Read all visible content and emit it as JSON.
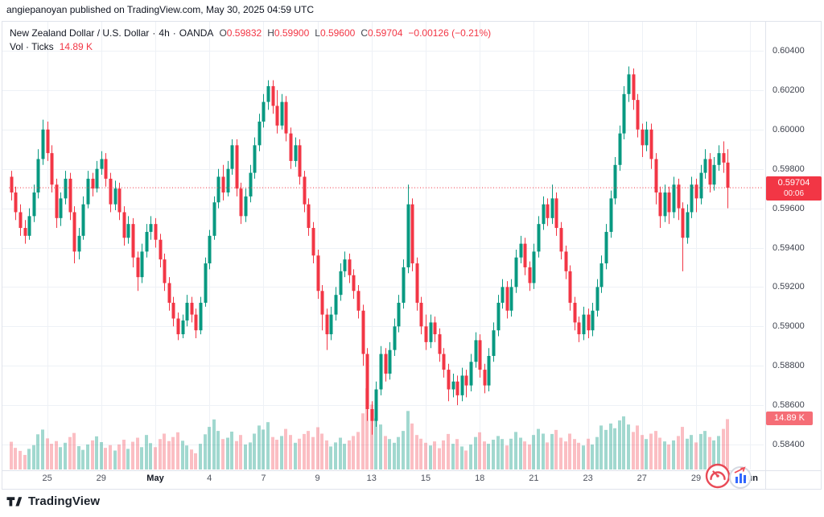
{
  "header": {
    "attribution": "angiepanoyan published on TradingView.com, May 30, 2025 04:59 UTC"
  },
  "legend": {
    "symbol": "New Zealand Dollar / U.S. Dollar",
    "sep": "·",
    "interval": "4h",
    "exchange": "OANDA",
    "ohlc": [
      {
        "k": "O",
        "v": "0.59832"
      },
      {
        "k": "H",
        "v": "0.59900"
      },
      {
        "k": "L",
        "v": "0.59600"
      },
      {
        "k": "C",
        "v": "0.59704"
      }
    ],
    "change": "−0.00126 (−0.21%)",
    "vol_label": "Vol · Ticks",
    "vol_value": "14.89 K"
  },
  "price_axis": {
    "ticks": [
      "0.60400",
      "0.60200",
      "0.60000",
      "0.59800",
      "0.59600",
      "0.59400",
      "0.59200",
      "0.59000",
      "0.58800",
      "0.58600",
      "0.58400"
    ],
    "current_price_label": "0.59704",
    "countdown": "00:06",
    "volume_label": "14.89 K"
  },
  "footer": {
    "brand": "TradingView"
  },
  "colors": {
    "up": "#089981",
    "down": "#f23645",
    "vol_up": "rgba(8,153,129,0.38)",
    "vol_down": "rgba(242,54,69,0.32)",
    "grid": "#eef1f6",
    "separator": "#e0e3eb",
    "price_line": "#f23645",
    "badge": "#f23645",
    "vol_badge": "#f56d76",
    "blue": "#2962ff"
  },
  "chart_data": {
    "type": "candlestick",
    "title": "New Zealand Dollar / U.S. Dollar · 4h · OANDA",
    "interval": "4h",
    "exchange": "OANDA",
    "ylabel": "price",
    "ylim": [
      0.5834,
      0.6046
    ],
    "grid": true,
    "current_price": 0.59704,
    "countdown": "00:06",
    "last_volume_k": 14.89,
    "last_bar": {
      "open": 0.59832,
      "high": 0.599,
      "low": 0.596,
      "close": 0.59704,
      "change": -0.00126,
      "change_pct": -0.21,
      "volume": "14.89 K"
    },
    "price_ticks": [
      0.604,
      0.602,
      0.6,
      0.598,
      0.596,
      0.594,
      0.592,
      0.59,
      0.588,
      0.586,
      0.584
    ],
    "time_labels": [
      {
        "text": "25",
        "index": 8,
        "month": false
      },
      {
        "text": "29",
        "index": 20,
        "month": false
      },
      {
        "text": "May",
        "index": 32,
        "month": true
      },
      {
        "text": "4",
        "index": 44,
        "month": false
      },
      {
        "text": "7",
        "index": 56,
        "month": false
      },
      {
        "text": "9",
        "index": 68,
        "month": false
      },
      {
        "text": "13",
        "index": 80,
        "month": false
      },
      {
        "text": "15",
        "index": 92,
        "month": false
      },
      {
        "text": "18",
        "index": 104,
        "month": false
      },
      {
        "text": "21",
        "index": 116,
        "month": false
      },
      {
        "text": "23",
        "index": 128,
        "month": false
      },
      {
        "text": "27",
        "index": 140,
        "month": false
      },
      {
        "text": "29",
        "index": 152,
        "month": false
      },
      {
        "text": "Jun",
        "index": 164,
        "month": true
      }
    ],
    "candles": [
      [
        0.5976,
        0.5979,
        0.5964,
        0.5968
      ],
      [
        0.5968,
        0.5971,
        0.5954,
        0.5958
      ],
      [
        0.5958,
        0.5962,
        0.5946,
        0.595
      ],
      [
        0.595,
        0.5954,
        0.5942,
        0.5946
      ],
      [
        0.5946,
        0.596,
        0.5944,
        0.5956
      ],
      [
        0.5956,
        0.5972,
        0.5953,
        0.5968
      ],
      [
        0.5968,
        0.599,
        0.5965,
        0.5985
      ],
      [
        0.5985,
        0.6005,
        0.5982,
        0.6
      ],
      [
        0.6,
        0.6004,
        0.5984,
        0.5988
      ],
      [
        0.5988,
        0.5992,
        0.5968,
        0.5972
      ],
      [
        0.5972,
        0.5975,
        0.595,
        0.5955
      ],
      [
        0.5955,
        0.5968,
        0.5951,
        0.5965
      ],
      [
        0.5965,
        0.5979,
        0.5962,
        0.5975
      ],
      [
        0.5975,
        0.5978,
        0.5954,
        0.5958
      ],
      [
        0.5958,
        0.5961,
        0.5932,
        0.5938
      ],
      [
        0.5938,
        0.595,
        0.5934,
        0.5946
      ],
      [
        0.5946,
        0.5966,
        0.5944,
        0.5962
      ],
      [
        0.5962,
        0.5979,
        0.596,
        0.5975
      ],
      [
        0.5975,
        0.5978,
        0.5966,
        0.597
      ],
      [
        0.597,
        0.5984,
        0.5968,
        0.598
      ],
      [
        0.598,
        0.5989,
        0.5977,
        0.5985
      ],
      [
        0.5985,
        0.5988,
        0.5971,
        0.5975
      ],
      [
        0.5975,
        0.5978,
        0.5958,
        0.5962
      ],
      [
        0.5962,
        0.5974,
        0.5959,
        0.597
      ],
      [
        0.597,
        0.5973,
        0.5954,
        0.5958
      ],
      [
        0.5958,
        0.5961,
        0.5941,
        0.5945
      ],
      [
        0.5945,
        0.5956,
        0.5942,
        0.5952
      ],
      [
        0.5952,
        0.5955,
        0.593,
        0.5935
      ],
      [
        0.5935,
        0.5938,
        0.5918,
        0.5925
      ],
      [
        0.5925,
        0.5942,
        0.5922,
        0.5938
      ],
      [
        0.5938,
        0.5952,
        0.5935,
        0.5948
      ],
      [
        0.5948,
        0.5956,
        0.5944,
        0.5952
      ],
      [
        0.5952,
        0.5955,
        0.594,
        0.5944
      ],
      [
        0.5944,
        0.5947,
        0.593,
        0.5934
      ],
      [
        0.5934,
        0.5937,
        0.5918,
        0.5922
      ],
      [
        0.5922,
        0.5925,
        0.5908,
        0.5912
      ],
      [
        0.5912,
        0.5915,
        0.59,
        0.5904
      ],
      [
        0.5904,
        0.5907,
        0.5893,
        0.5896
      ],
      [
        0.5896,
        0.5906,
        0.5894,
        0.5903
      ],
      [
        0.5903,
        0.5916,
        0.59,
        0.5912
      ],
      [
        0.5912,
        0.5915,
        0.5902,
        0.5906
      ],
      [
        0.5906,
        0.5909,
        0.5894,
        0.5898
      ],
      [
        0.5898,
        0.5915,
        0.5896,
        0.5912
      ],
      [
        0.5912,
        0.5935,
        0.591,
        0.5932
      ],
      [
        0.5932,
        0.5949,
        0.5929,
        0.5946
      ],
      [
        0.5946,
        0.5966,
        0.5944,
        0.5963
      ],
      [
        0.5963,
        0.598,
        0.596,
        0.5976
      ],
      [
        0.5976,
        0.5982,
        0.5964,
        0.5968
      ],
      [
        0.5968,
        0.5984,
        0.5966,
        0.598
      ],
      [
        0.598,
        0.5995,
        0.5977,
        0.5992
      ],
      [
        0.5992,
        0.5995,
        0.5966,
        0.597
      ],
      [
        0.597,
        0.5973,
        0.5952,
        0.5956
      ],
      [
        0.5956,
        0.597,
        0.5953,
        0.5966
      ],
      [
        0.5966,
        0.5982,
        0.5963,
        0.5978
      ],
      [
        0.5978,
        0.5996,
        0.5975,
        0.5992
      ],
      [
        0.5992,
        0.6008,
        0.5989,
        0.6004
      ],
      [
        0.6004,
        0.6018,
        0.6001,
        0.6014
      ],
      [
        0.6014,
        0.6025,
        0.601,
        0.6022
      ],
      [
        0.6022,
        0.6025,
        0.6008,
        0.6012
      ],
      [
        0.6012,
        0.602,
        0.5998,
        0.6002
      ],
      [
        0.6002,
        0.6018,
        0.6,
        0.6014
      ],
      [
        0.6014,
        0.6017,
        0.5994,
        0.5998
      ],
      [
        0.5998,
        0.6001,
        0.598,
        0.5984
      ],
      [
        0.5984,
        0.5996,
        0.5981,
        0.5992
      ],
      [
        0.5992,
        0.5995,
        0.5972,
        0.5976
      ],
      [
        0.5976,
        0.5979,
        0.5958,
        0.5962
      ],
      [
        0.5962,
        0.5965,
        0.5946,
        0.595
      ],
      [
        0.595,
        0.5953,
        0.5932,
        0.5936
      ],
      [
        0.5936,
        0.5939,
        0.5914,
        0.5918
      ],
      [
        0.5918,
        0.5921,
        0.5898,
        0.5906
      ],
      [
        0.5906,
        0.5909,
        0.5888,
        0.5896
      ],
      [
        0.5896,
        0.591,
        0.5893,
        0.5906
      ],
      [
        0.5906,
        0.592,
        0.5903,
        0.5916
      ],
      [
        0.5916,
        0.5932,
        0.5913,
        0.5928
      ],
      [
        0.5928,
        0.5938,
        0.5925,
        0.5934
      ],
      [
        0.5934,
        0.5937,
        0.5922,
        0.5926
      ],
      [
        0.5926,
        0.5929,
        0.5914,
        0.5918
      ],
      [
        0.5918,
        0.5921,
        0.5904,
        0.5908
      ],
      [
        0.5908,
        0.5911,
        0.588,
        0.5886
      ],
      [
        0.5886,
        0.5889,
        0.5852,
        0.5858
      ],
      [
        0.5858,
        0.5862,
        0.5845,
        0.5852
      ],
      [
        0.5852,
        0.5872,
        0.5849,
        0.5868
      ],
      [
        0.5868,
        0.589,
        0.5865,
        0.5886
      ],
      [
        0.5886,
        0.5889,
        0.5872,
        0.5876
      ],
      [
        0.5876,
        0.5892,
        0.5873,
        0.5888
      ],
      [
        0.5888,
        0.5904,
        0.5885,
        0.59
      ],
      [
        0.59,
        0.5916,
        0.5897,
        0.5912
      ],
      [
        0.5912,
        0.5934,
        0.5909,
        0.593
      ],
      [
        0.593,
        0.5972,
        0.5927,
        0.5962
      ],
      [
        0.5962,
        0.5965,
        0.5928,
        0.5932
      ],
      [
        0.5932,
        0.5935,
        0.5908,
        0.5912
      ],
      [
        0.5912,
        0.5915,
        0.5896,
        0.59
      ],
      [
        0.59,
        0.5906,
        0.5888,
        0.5892
      ],
      [
        0.5892,
        0.5906,
        0.5889,
        0.5902
      ],
      [
        0.5902,
        0.5905,
        0.5892,
        0.5896
      ],
      [
        0.5896,
        0.5899,
        0.5882,
        0.5886
      ],
      [
        0.5886,
        0.5889,
        0.5874,
        0.5878
      ],
      [
        0.5878,
        0.5881,
        0.5862,
        0.5868
      ],
      [
        0.5868,
        0.5876,
        0.5864,
        0.5872
      ],
      [
        0.5872,
        0.5875,
        0.586,
        0.5865
      ],
      [
        0.5865,
        0.5879,
        0.5862,
        0.5875
      ],
      [
        0.5875,
        0.5878,
        0.5864,
        0.587
      ],
      [
        0.587,
        0.5886,
        0.5867,
        0.5882
      ],
      [
        0.5882,
        0.5897,
        0.5879,
        0.5893
      ],
      [
        0.5893,
        0.5896,
        0.5874,
        0.5878
      ],
      [
        0.5878,
        0.5881,
        0.5866,
        0.587
      ],
      [
        0.587,
        0.5889,
        0.5867,
        0.5885
      ],
      [
        0.5885,
        0.5902,
        0.5882,
        0.5898
      ],
      [
        0.5898,
        0.5916,
        0.5895,
        0.5912
      ],
      [
        0.5912,
        0.5924,
        0.5909,
        0.592
      ],
      [
        0.592,
        0.5923,
        0.5904,
        0.5908
      ],
      [
        0.5908,
        0.5924,
        0.5905,
        0.592
      ],
      [
        0.592,
        0.5939,
        0.5917,
        0.5935
      ],
      [
        0.5935,
        0.5946,
        0.5932,
        0.5942
      ],
      [
        0.5942,
        0.5945,
        0.5926,
        0.593
      ],
      [
        0.593,
        0.5933,
        0.5918,
        0.5922
      ],
      [
        0.5922,
        0.5942,
        0.5919,
        0.5938
      ],
      [
        0.5938,
        0.5956,
        0.5935,
        0.5952
      ],
      [
        0.5952,
        0.5966,
        0.5949,
        0.5962
      ],
      [
        0.5962,
        0.5965,
        0.5951,
        0.5955
      ],
      [
        0.5955,
        0.5972,
        0.5952,
        0.5965
      ],
      [
        0.5965,
        0.5968,
        0.5946,
        0.595
      ],
      [
        0.595,
        0.5953,
        0.5934,
        0.5938
      ],
      [
        0.5938,
        0.5941,
        0.5924,
        0.5928
      ],
      [
        0.5928,
        0.5931,
        0.5908,
        0.5912
      ],
      [
        0.5912,
        0.5915,
        0.5898,
        0.5902
      ],
      [
        0.5902,
        0.5905,
        0.5892,
        0.5896
      ],
      [
        0.5896,
        0.591,
        0.5893,
        0.5906
      ],
      [
        0.5906,
        0.5909,
        0.5894,
        0.5898
      ],
      [
        0.5898,
        0.5912,
        0.5895,
        0.5908
      ],
      [
        0.5908,
        0.5924,
        0.5905,
        0.592
      ],
      [
        0.592,
        0.5936,
        0.5917,
        0.5932
      ],
      [
        0.5932,
        0.5952,
        0.5929,
        0.5948
      ],
      [
        0.5948,
        0.5969,
        0.5945,
        0.5965
      ],
      [
        0.5965,
        0.5986,
        0.5962,
        0.5982
      ],
      [
        0.5982,
        0.6002,
        0.5979,
        0.5998
      ],
      [
        0.5998,
        0.6022,
        0.5995,
        0.6018
      ],
      [
        0.6018,
        0.6032,
        0.6014,
        0.6028
      ],
      [
        0.6028,
        0.6031,
        0.601,
        0.6015
      ],
      [
        0.6015,
        0.6018,
        0.5996,
        0.6
      ],
      [
        0.6,
        0.6003,
        0.5986,
        0.5992
      ],
      [
        0.5992,
        0.6004,
        0.5989,
        0.6
      ],
      [
        0.6,
        0.6003,
        0.598,
        0.5985
      ],
      [
        0.5985,
        0.5988,
        0.5962,
        0.5968
      ],
      [
        0.5968,
        0.5971,
        0.595,
        0.5956
      ],
      [
        0.5956,
        0.5972,
        0.5953,
        0.5968
      ],
      [
        0.5968,
        0.5971,
        0.5952,
        0.5958
      ],
      [
        0.5958,
        0.5976,
        0.5955,
        0.5972
      ],
      [
        0.5972,
        0.5975,
        0.5954,
        0.596
      ],
      [
        0.596,
        0.5963,
        0.5928,
        0.5945
      ],
      [
        0.5945,
        0.5962,
        0.5942,
        0.5958
      ],
      [
        0.5958,
        0.5976,
        0.5955,
        0.5972
      ],
      [
        0.5972,
        0.5975,
        0.5958,
        0.5965
      ],
      [
        0.5965,
        0.5982,
        0.5962,
        0.5978
      ],
      [
        0.5978,
        0.599,
        0.5975,
        0.5985
      ],
      [
        0.5985,
        0.5988,
        0.5968,
        0.5972
      ],
      [
        0.5972,
        0.5986,
        0.5969,
        0.5982
      ],
      [
        0.5982,
        0.5992,
        0.5979,
        0.5988
      ],
      [
        0.5988,
        0.5994,
        0.5978,
        0.59832
      ],
      [
        0.59832,
        0.599,
        0.596,
        0.59704
      ]
    ],
    "volumes_k": [
      8.2,
      6.4,
      5.5,
      4.3,
      6.1,
      7.2,
      10.4,
      11.8,
      9.2,
      7.6,
      8.4,
      6.6,
      7.9,
      9.6,
      10.8,
      6.9,
      5.8,
      7.4,
      8.6,
      9.8,
      8.1,
      6.4,
      7.2,
      5.6,
      7.4,
      8.8,
      6.1,
      8.2,
      9.4,
      6.6,
      10.2,
      7.8,
      6.6,
      9.0,
      10.6,
      8.4,
      9.6,
      11.0,
      8.5,
      7.1,
      5.9,
      4.8,
      7.6,
      10.4,
      12.6,
      14.8,
      11.4,
      9.0,
      9.4,
      11.2,
      8.4,
      10.2,
      7.4,
      8.0,
      10.6,
      13.0,
      11.8,
      14.0,
      9.6,
      8.8,
      9.9,
      12.0,
      10.2,
      7.9,
      9.1,
      10.5,
      11.4,
      9.6,
      12.5,
      10.6,
      8.6,
      6.8,
      8.0,
      9.4,
      7.6,
      8.6,
      9.9,
      11.1,
      16.6,
      24.0,
      19.2,
      15.1,
      13.3,
      9.9,
      9.0,
      7.9,
      9.6,
      11.4,
      17.3,
      13.6,
      10.2,
      9.1,
      7.9,
      7.1,
      8.3,
      6.3,
      8.6,
      10.5,
      7.6,
      9.0,
      6.8,
      5.6,
      7.4,
      9.6,
      11.0,
      8.3,
      7.6,
      8.8,
      9.9,
      9.0,
      7.1,
      9.1,
      11.1,
      9.4,
      8.3,
      7.4,
      10.2,
      12.0,
      10.6,
      8.0,
      10.5,
      11.7,
      9.4,
      8.3,
      10.6,
      9.0,
      7.9,
      7.1,
      9.1,
      7.4,
      9.6,
      13.0,
      11.7,
      13.6,
      12.2,
      14.5,
      15.7,
      13.3,
      11.1,
      13.0,
      10.2,
      9.0,
      10.6,
      11.4,
      9.4,
      8.3,
      7.4,
      8.6,
      9.9,
      12.6,
      9.1,
      10.2,
      8.0,
      10.5,
      11.4,
      9.6,
      8.6,
      9.9,
      12.0,
      14.89
    ]
  }
}
